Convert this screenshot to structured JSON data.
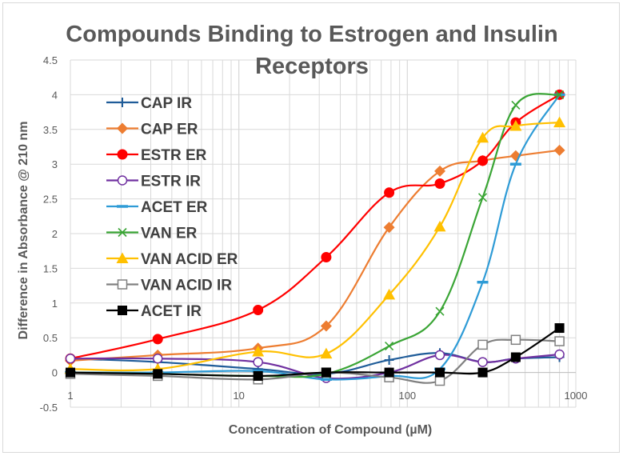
{
  "chart_data": {
    "type": "line",
    "title_lines": [
      "Compounds Binding to Estrogen and Insulin",
      "Receptors"
    ],
    "xlabel": "Concentration of Compound (µM)",
    "ylabel": "Difference in Absorbance @ 210 nm",
    "x_scale": "log",
    "xlim": [
      1,
      1000
    ],
    "ylim": [
      -0.5,
      4.5
    ],
    "x_tick_labels": [
      "1",
      "10",
      "100",
      "1000"
    ],
    "y_tick_labels": [
      "-0.5",
      "0",
      "0.5",
      "1",
      "1.5",
      "2",
      "2.5",
      "3",
      "3.5",
      "4",
      "4.5"
    ],
    "grid": true,
    "legend_position": "left",
    "x": [
      1,
      3.3,
      13,
      33,
      78,
      156,
      280,
      440,
      800
    ],
    "series": [
      {
        "name": "CAP IR",
        "color": "#1f5c99",
        "marker": "plus",
        "values": [
          0.2,
          0.15,
          0.05,
          -0.02,
          0.18,
          0.28,
          0.15,
          0.2,
          0.22
        ]
      },
      {
        "name": "CAP ER",
        "color": "#ed7d31",
        "marker": "diamond",
        "values": [
          0.17,
          0.25,
          0.35,
          0.67,
          2.09,
          2.9,
          3.05,
          3.12,
          3.2
        ]
      },
      {
        "name": "ESTR ER",
        "color": "#ff0000",
        "marker": "circle",
        "values": [
          0.2,
          0.48,
          0.9,
          1.66,
          2.59,
          2.72,
          3.05,
          3.6,
          4.0
        ]
      },
      {
        "name": "ESTR IR",
        "color": "#7030a0",
        "marker": "open-circle",
        "values": [
          0.2,
          0.2,
          0.15,
          -0.08,
          0.0,
          0.25,
          0.15,
          0.2,
          0.26
        ]
      },
      {
        "name": "ACET ER",
        "color": "#2e9bd6",
        "marker": "dash",
        "values": [
          0.0,
          0.0,
          0.02,
          -0.1,
          -0.05,
          0.05,
          1.3,
          3.0,
          4.0
        ]
      },
      {
        "name": "VAN ER",
        "color": "#3aa535",
        "marker": "x",
        "values": [
          0.0,
          -0.02,
          -0.05,
          -0.02,
          0.38,
          0.88,
          2.52,
          3.85,
          4.0
        ]
      },
      {
        "name": "VAN ACID ER",
        "color": "#ffc000",
        "marker": "triangle",
        "values": [
          0.05,
          0.05,
          0.3,
          0.27,
          1.12,
          2.1,
          3.38,
          3.55,
          3.6
        ]
      },
      {
        "name": "VAN ACID IR",
        "color": "#808080",
        "marker": "open-square",
        "values": [
          -0.02,
          -0.05,
          -0.1,
          0.0,
          -0.07,
          -0.12,
          0.4,
          0.47,
          0.45
        ]
      },
      {
        "name": "ACET IR",
        "color": "#000000",
        "marker": "square",
        "values": [
          0.0,
          -0.02,
          -0.05,
          0.0,
          0.0,
          0.0,
          0.0,
          0.22,
          0.64
        ]
      }
    ]
  }
}
